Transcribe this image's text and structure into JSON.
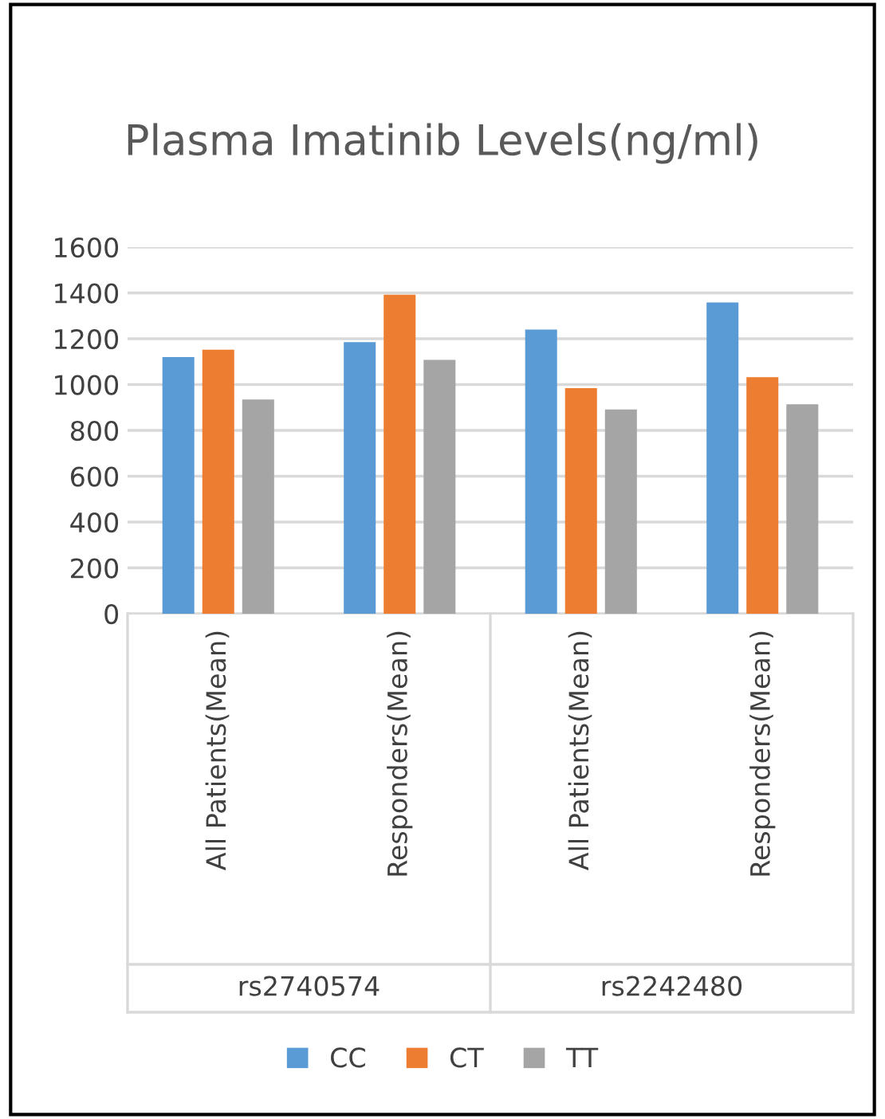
{
  "chart_data": {
    "type": "bar",
    "title": "Plasma Imatinib Levels(ng/ml)",
    "categories": [
      "All Patients(Mean)",
      "Responders(Mean)",
      "All Patients(Mean)",
      "Responders(Mean)"
    ],
    "series": [
      {
        "name": "CC",
        "color": "#5b9bd5",
        "values": [
          1120,
          1185,
          1240,
          1358
        ]
      },
      {
        "name": "CT",
        "color": "#ed7d31",
        "values": [
          1152,
          1392,
          984,
          1032
        ]
      },
      {
        "name": "TT",
        "color": "#a5a5a5",
        "values": [
          935,
          1108,
          891,
          914
        ]
      }
    ],
    "annotations": [
      "rs2740574",
      "rs2242480"
    ],
    "ylim": [
      0,
      1600
    ],
    "yticks": [
      0,
      200,
      400,
      600,
      800,
      1000,
      1200,
      1400,
      1600
    ],
    "grid": "y",
    "legend": "bottom"
  }
}
